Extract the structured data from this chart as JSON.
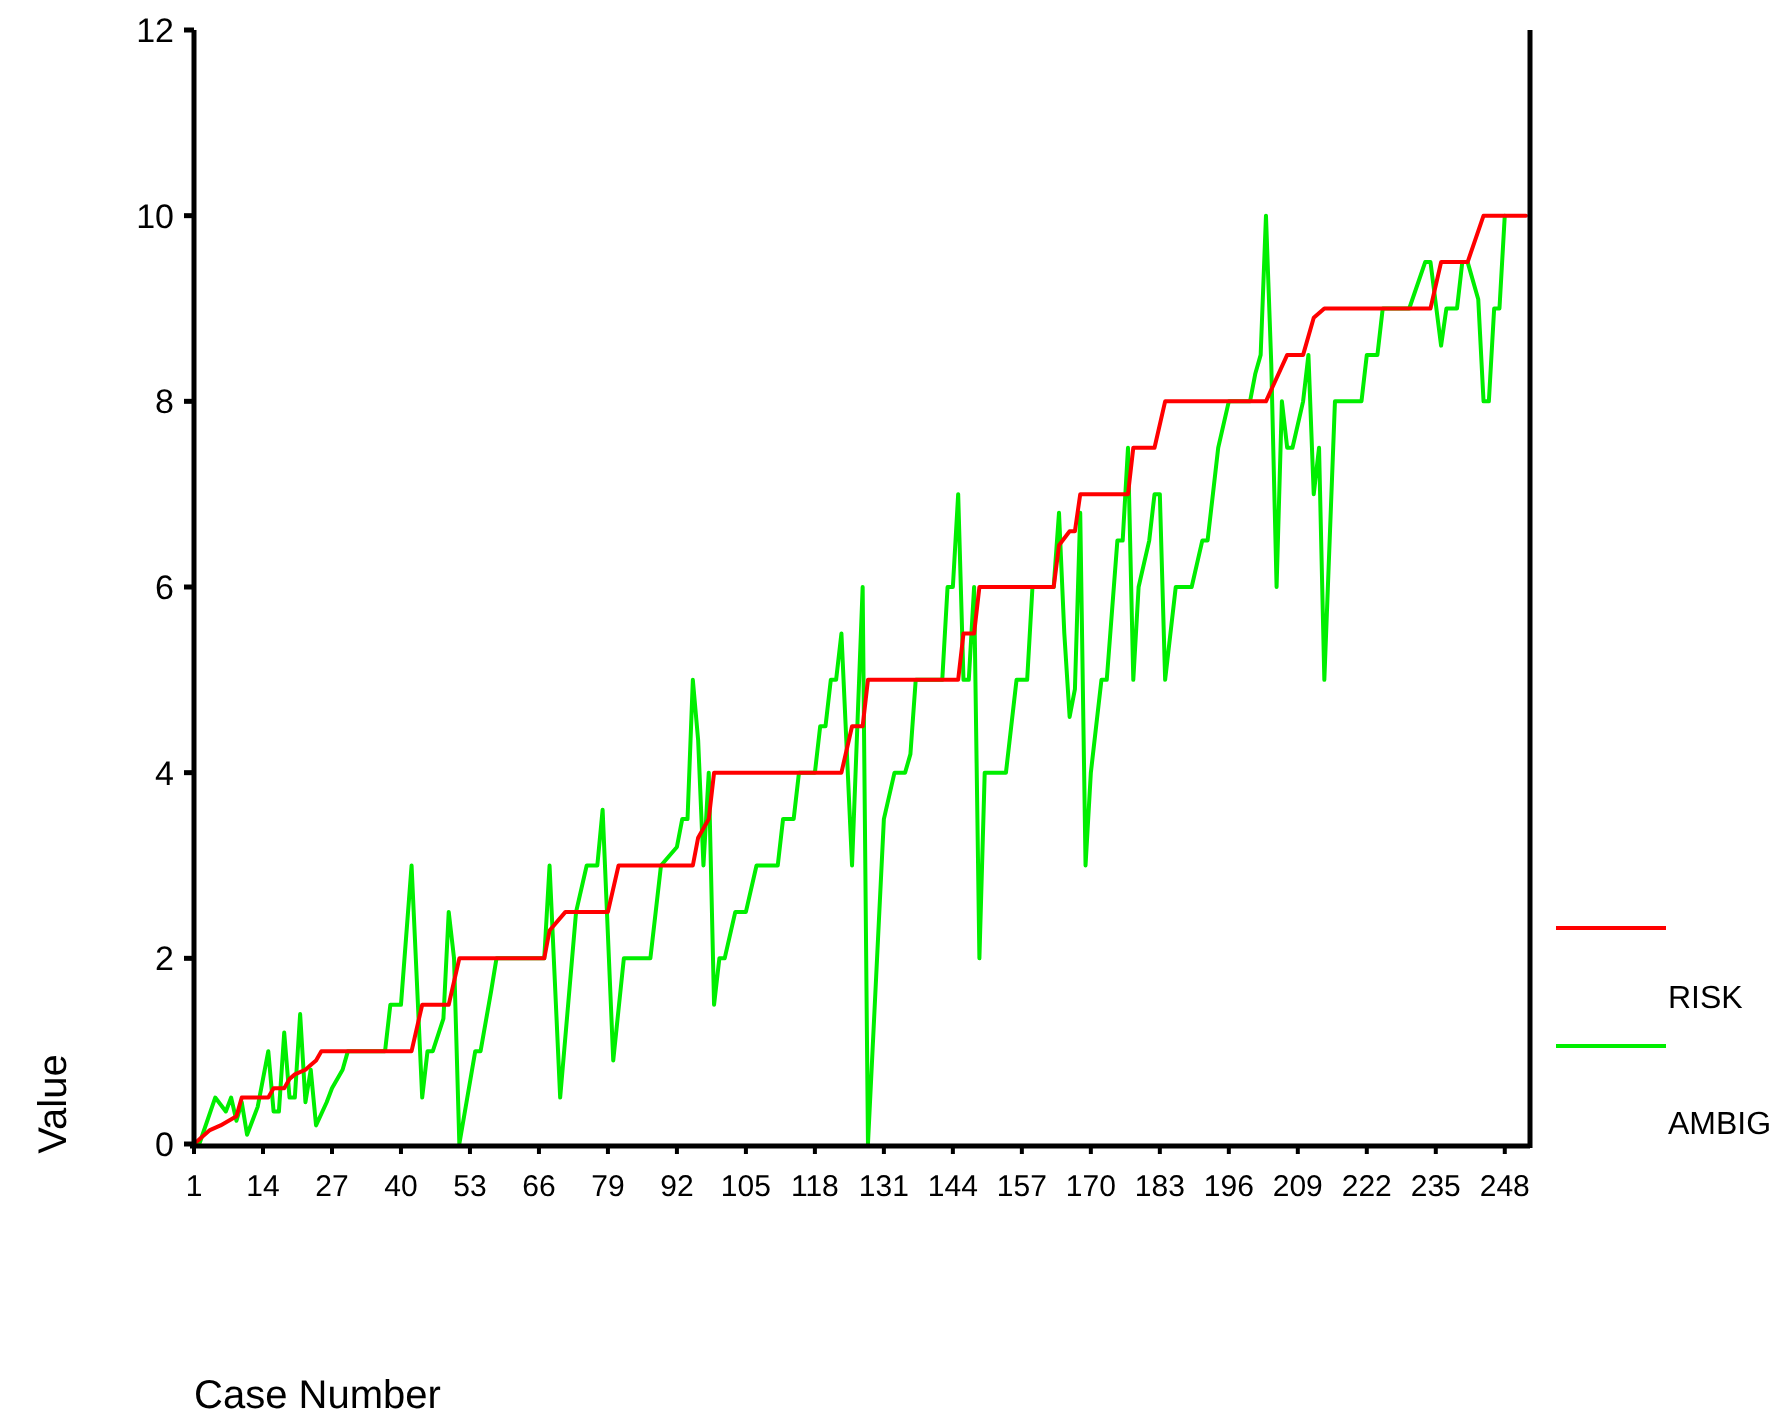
{
  "chart_data": {
    "type": "line",
    "xlabel": "Case Number",
    "ylabel": "Value",
    "xlim": [
      1,
      252
    ],
    "xticks": [
      1,
      14,
      27,
      40,
      53,
      66,
      79,
      92,
      105,
      118,
      131,
      144,
      157,
      170,
      183,
      196,
      209,
      222,
      235,
      248
    ],
    "ylim": [
      0,
      12
    ],
    "yticks": [
      0,
      2,
      4,
      6,
      8,
      10,
      12
    ],
    "grid": false,
    "legend": "right",
    "marker": "none",
    "line_style": "solid",
    "series": [
      {
        "name": "RISK",
        "color": "#ff0000",
        "x": [
          1,
          4,
          6,
          9,
          10,
          15,
          16,
          18,
          19,
          20,
          22,
          23,
          24,
          25,
          42,
          44,
          49,
          51,
          67,
          68,
          71,
          79,
          81,
          95,
          96,
          98,
          99,
          123,
          124,
          125,
          127,
          128,
          145,
          146,
          148,
          149,
          163,
          164,
          166,
          167,
          168,
          177,
          178,
          182,
          184,
          203,
          207,
          210,
          212,
          214,
          234,
          236,
          241,
          244,
          252
        ],
        "values": [
          0,
          0.15,
          0.2,
          0.3,
          0.5,
          0.5,
          0.6,
          0.6,
          0.7,
          0.75,
          0.8,
          0.85,
          0.9,
          1,
          1,
          1.5,
          1.5,
          2,
          2,
          2.3,
          2.5,
          2.5,
          3,
          3,
          3.3,
          3.5,
          4,
          4,
          4.25,
          4.5,
          4.5,
          5,
          5,
          5.5,
          5.5,
          6,
          6,
          6.45,
          6.6,
          6.6,
          7,
          7,
          7.5,
          7.5,
          8,
          8,
          8.5,
          8.5,
          8.9,
          9,
          9,
          9.5,
          9.5,
          10,
          10
        ]
      },
      {
        "name": "AMBIG",
        "color": "#00ee00",
        "x": [
          1,
          2,
          5,
          7,
          8,
          9,
          10,
          11,
          13,
          15,
          16,
          17,
          18,
          19,
          20,
          21,
          22,
          23,
          24,
          26,
          27,
          29,
          30,
          37,
          38,
          40,
          42,
          44,
          45,
          46,
          48,
          49,
          50,
          51,
          54,
          55,
          57,
          58,
          67,
          68,
          70,
          73,
          75,
          77,
          78,
          80,
          82,
          87,
          88,
          89,
          92,
          93,
          94,
          95,
          96,
          97,
          98,
          99,
          100,
          101,
          103,
          105,
          107,
          111,
          112,
          114,
          115,
          118,
          119,
          120,
          121,
          122,
          123,
          125,
          127,
          128,
          131,
          133,
          135,
          136,
          137,
          142,
          143,
          144,
          145,
          146,
          147,
          148,
          149,
          150,
          154,
          155,
          156,
          158,
          159,
          163,
          164,
          165,
          166,
          167,
          168,
          169,
          170,
          172,
          173,
          175,
          176,
          177,
          178,
          179,
          181,
          182,
          183,
          184,
          186,
          189,
          191,
          192,
          193,
          194,
          196,
          200,
          201,
          202,
          203,
          204,
          205,
          206,
          207,
          208,
          210,
          211,
          212,
          213,
          214,
          216,
          221,
          222,
          224,
          225,
          230,
          233,
          234,
          236,
          237,
          239,
          240,
          241,
          243,
          244,
          245,
          246,
          247,
          248
        ],
        "values": [
          0,
          0,
          0.5,
          0.35,
          0.5,
          0.25,
          0.45,
          0.1,
          0.4,
          1,
          0.35,
          0.35,
          1.2,
          0.5,
          0.5,
          1.4,
          0.45,
          0.8,
          0.2,
          0.45,
          0.6,
          0.8,
          1,
          1,
          1.5,
          1.5,
          3,
          0.5,
          1,
          1,
          1.35,
          2.5,
          2,
          0,
          1,
          1,
          1.65,
          2,
          2,
          3,
          0.5,
          2.5,
          3,
          3,
          3.6,
          0.9,
          2,
          2,
          2.5,
          3,
          3.2,
          3.5,
          3.5,
          5,
          4.35,
          3,
          4,
          1.5,
          2,
          2,
          2.5,
          2.5,
          3,
          3,
          3.5,
          3.5,
          4,
          4,
          4.5,
          4.5,
          5,
          5,
          5.5,
          3,
          6,
          0,
          3.5,
          4,
          4,
          4.2,
          5,
          5,
          6,
          6,
          7,
          5,
          5,
          6,
          2,
          4,
          4,
          4.5,
          5,
          5,
          6,
          6,
          6.8,
          5.5,
          4.6,
          4.9,
          6.8,
          3,
          4,
          5,
          5,
          6.5,
          6.5,
          7.5,
          5,
          6,
          6.5,
          7,
          7,
          5,
          6,
          6,
          6.5,
          6.5,
          7,
          7.5,
          8,
          8,
          8.3,
          8.5,
          10,
          8.4,
          6,
          8,
          7.5,
          7.5,
          8,
          8.5,
          7,
          7.5,
          5,
          8,
          8,
          8.5,
          8.5,
          9,
          9,
          9.5,
          9.5,
          8.6,
          9,
          9,
          9.5,
          9.5,
          9.1,
          8,
          8,
          9,
          9,
          10
        ]
      }
    ]
  }
}
